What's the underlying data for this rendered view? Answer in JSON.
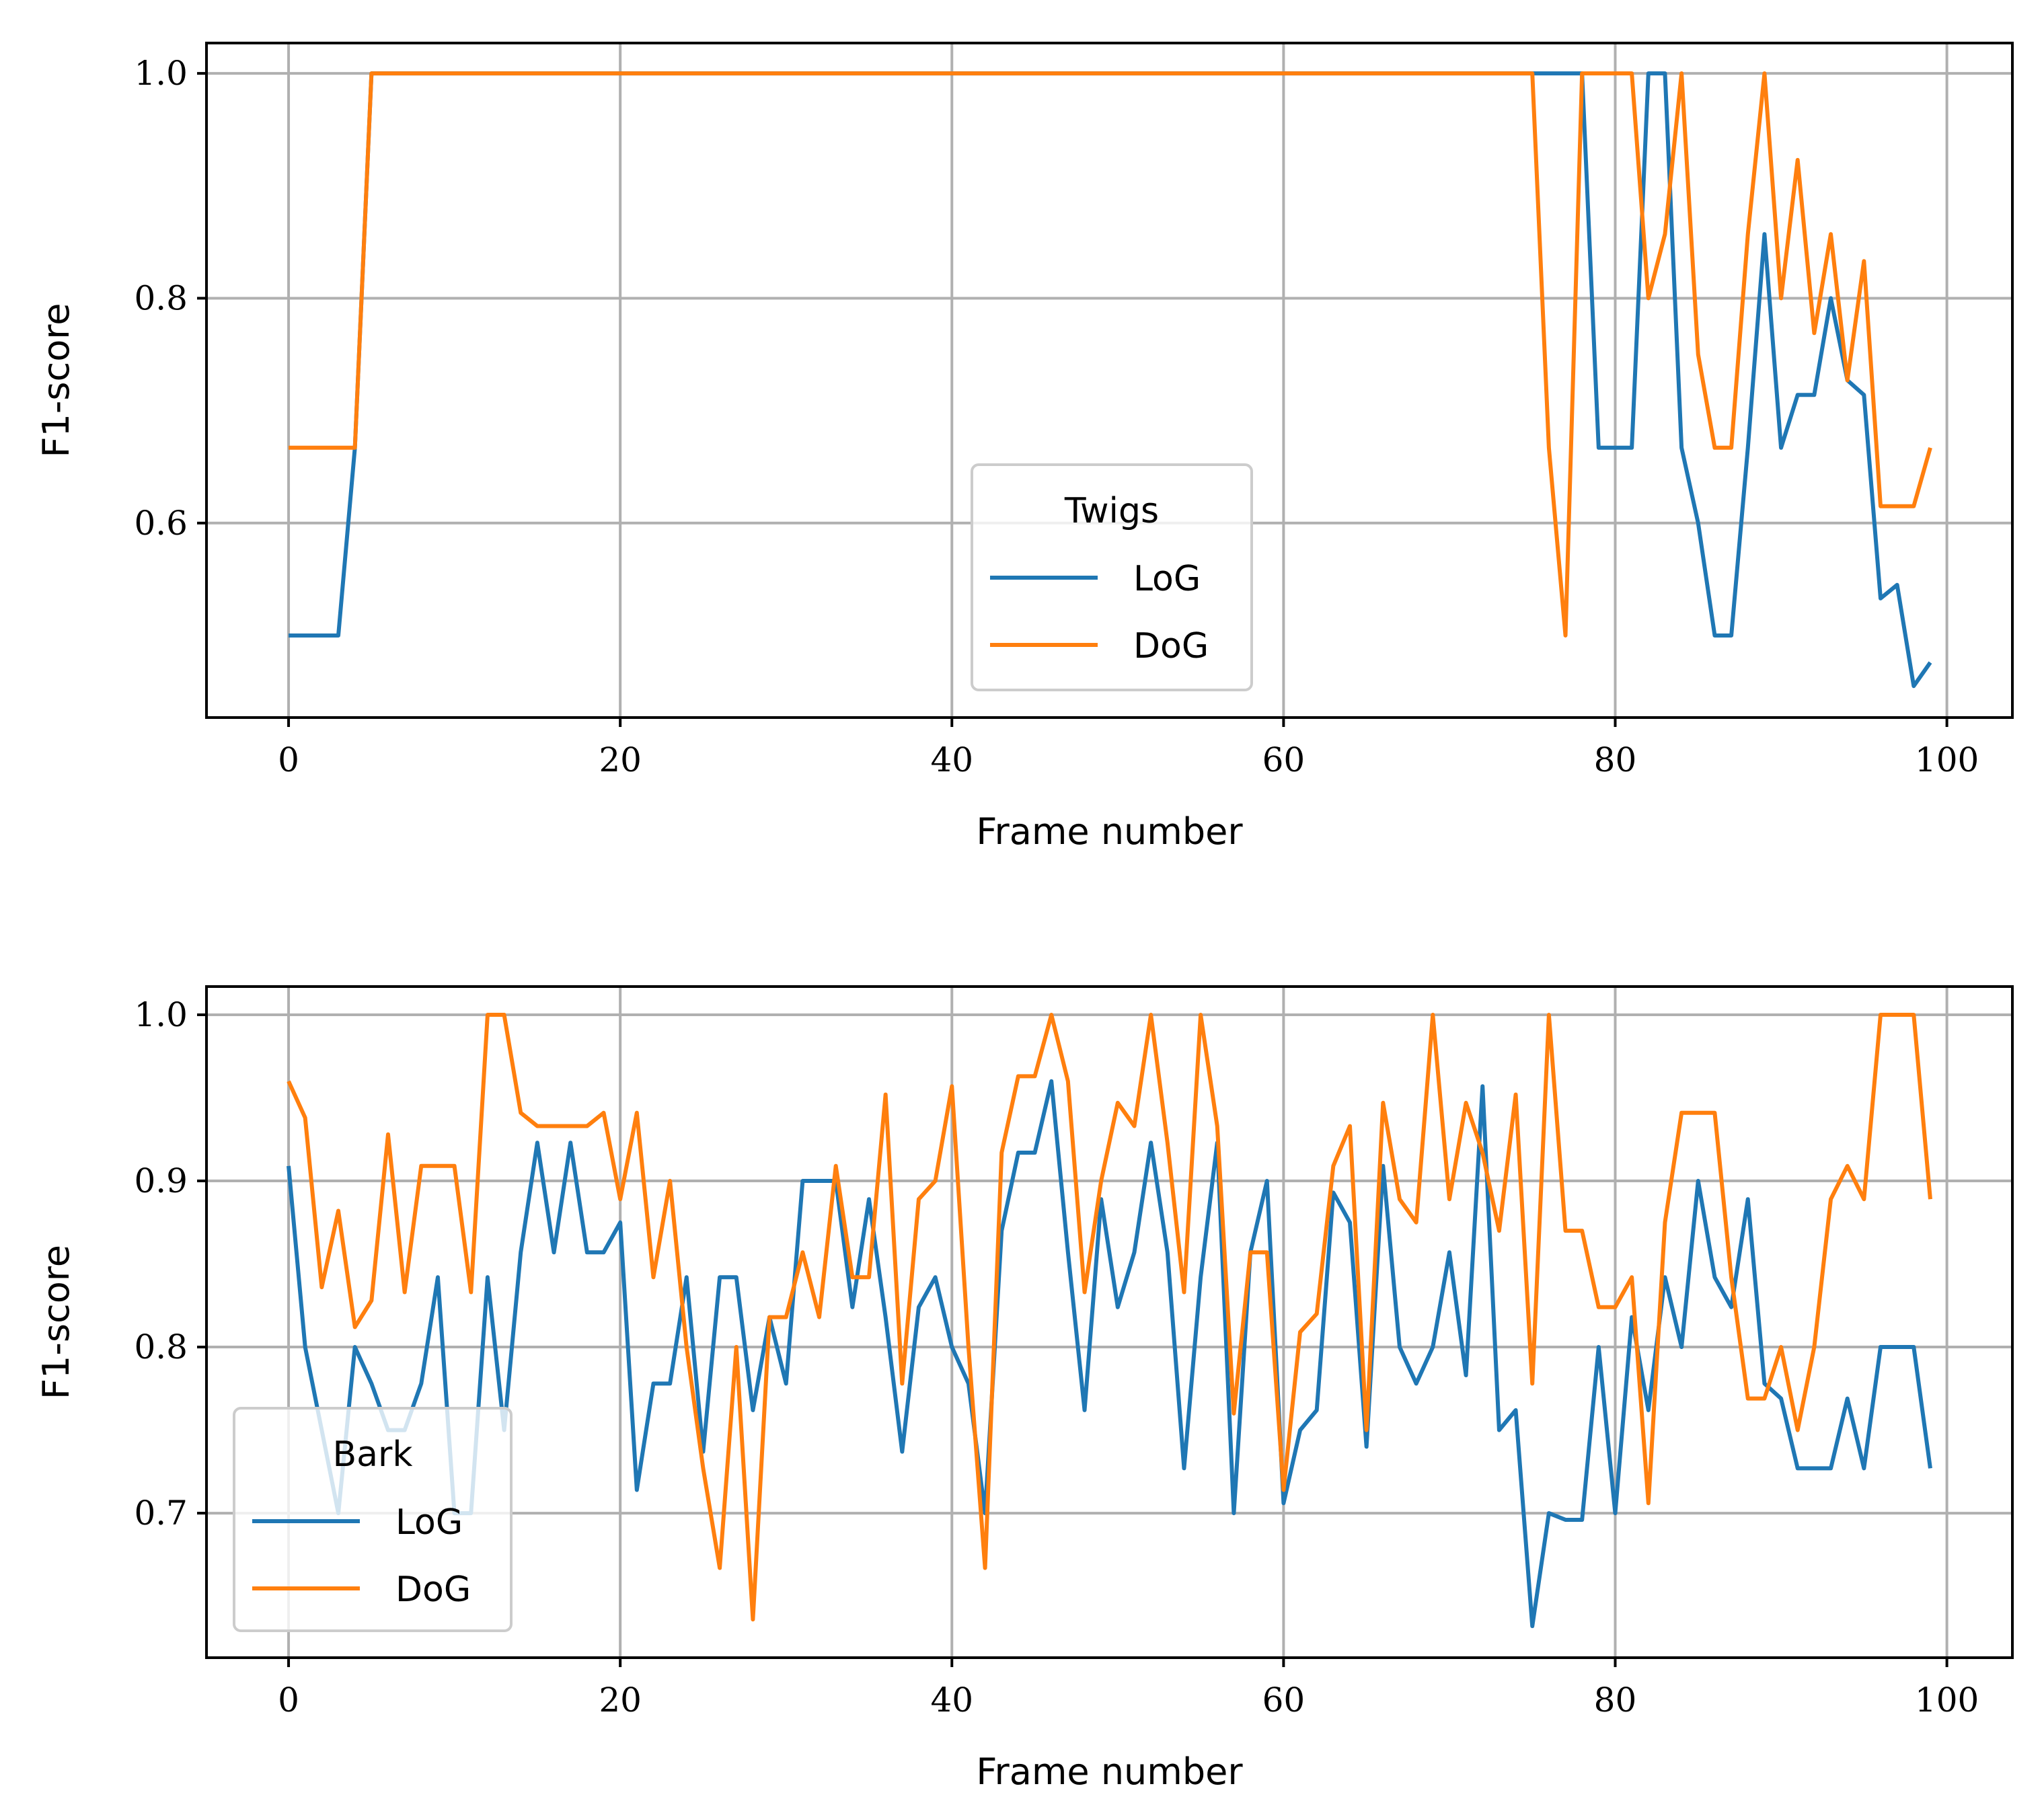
{
  "chart_data": [
    {
      "type": "line",
      "xlabel": "Frame number",
      "ylabel": "F1-score",
      "xlim": [
        -4.95,
        103.95
      ],
      "ylim": [
        0.427,
        1.027
      ],
      "xticks": [
        0,
        20,
        40,
        60,
        80,
        100
      ],
      "xtick_labels": [
        "0",
        "20",
        "40",
        "60",
        "80",
        "100"
      ],
      "yticks": [
        0.6,
        0.8,
        1.0
      ],
      "ytick_labels": [
        "0.6",
        "0.8",
        "1.0"
      ],
      "grid": true,
      "legend": {
        "title": "Twigs",
        "placement": "lower-center"
      },
      "series": [
        {
          "name": "LoG",
          "color": "#1f77b4",
          "values": [
            0.5,
            0.5,
            0.5,
            0.5,
            0.667,
            1,
            1,
            1,
            1,
            1,
            1,
            1,
            1,
            1,
            1,
            1,
            1,
            1,
            1,
            1,
            1,
            1,
            1,
            1,
            1,
            1,
            1,
            1,
            1,
            1,
            1,
            1,
            1,
            1,
            1,
            1,
            1,
            1,
            1,
            1,
            1,
            1,
            1,
            1,
            1,
            1,
            1,
            1,
            1,
            1,
            1,
            1,
            1,
            1,
            1,
            1,
            1,
            1,
            1,
            1,
            1,
            1,
            1,
            1,
            1,
            1,
            1,
            1,
            1,
            1,
            1,
            1,
            1,
            1,
            1,
            1,
            1,
            1,
            1,
            0.667,
            0.667,
            0.667,
            1,
            1,
            0.667,
            0.6,
            0.5,
            0.5,
            0.667,
            0.857,
            0.667,
            0.714,
            0.714,
            0.8,
            0.727,
            0.714,
            0.533,
            0.545,
            0.455,
            0.476
          ]
        },
        {
          "name": "DoG",
          "color": "#ff7f0e",
          "values": [
            0.667,
            0.667,
            0.667,
            0.667,
            0.667,
            1,
            1,
            1,
            1,
            1,
            1,
            1,
            1,
            1,
            1,
            1,
            1,
            1,
            1,
            1,
            1,
            1,
            1,
            1,
            1,
            1,
            1,
            1,
            1,
            1,
            1,
            1,
            1,
            1,
            1,
            1,
            1,
            1,
            1,
            1,
            1,
            1,
            1,
            1,
            1,
            1,
            1,
            1,
            1,
            1,
            1,
            1,
            1,
            1,
            1,
            1,
            1,
            1,
            1,
            1,
            1,
            1,
            1,
            1,
            1,
            1,
            1,
            1,
            1,
            1,
            1,
            1,
            1,
            1,
            1,
            1,
            0.667,
            0.5,
            1,
            1,
            1,
            1,
            0.8,
            0.857,
            1,
            0.75,
            0.667,
            0.667,
            0.857,
            1,
            0.8,
            0.923,
            0.769,
            0.857,
            0.727,
            0.833,
            0.615,
            0.615,
            0.615,
            0.667
          ]
        }
      ]
    },
    {
      "type": "line",
      "xlabel": "Frame number",
      "ylabel": "F1-score",
      "xlim": [
        -4.95,
        103.95
      ],
      "ylim": [
        0.613,
        1.017
      ],
      "xticks": [
        0,
        20,
        40,
        60,
        80,
        100
      ],
      "xtick_labels": [
        "0",
        "20",
        "40",
        "60",
        "80",
        "100"
      ],
      "yticks": [
        0.7,
        0.8,
        0.9,
        1.0
      ],
      "ytick_labels": [
        "0.7",
        "0.8",
        "0.9",
        "1.0"
      ],
      "grid": true,
      "legend": {
        "title": "Bark",
        "placement": "lower-left"
      },
      "series": [
        {
          "name": "LoG",
          "color": "#1f77b4",
          "values": [
            0.909,
            0.8,
            0.75,
            0.7,
            0.8,
            0.778,
            0.75,
            0.75,
            0.778,
            0.842,
            0.7,
            0.7,
            0.842,
            0.75,
            0.857,
            0.923,
            0.857,
            0.923,
            0.857,
            0.857,
            0.875,
            0.714,
            0.778,
            0.778,
            0.842,
            0.737,
            0.842,
            0.842,
            0.762,
            0.818,
            0.778,
            0.9,
            0.9,
            0.9,
            0.824,
            0.889,
            0.818,
            0.737,
            0.824,
            0.842,
            0.8,
            0.778,
            0.7,
            0.87,
            0.917,
            0.917,
            0.96,
            0.857,
            0.762,
            0.889,
            0.824,
            0.857,
            0.923,
            0.857,
            0.727,
            0.842,
            0.923,
            0.7,
            0.857,
            0.9,
            0.706,
            0.75,
            0.762,
            0.893,
            0.875,
            0.74,
            0.909,
            0.8,
            0.778,
            0.8,
            0.857,
            0.783,
            0.957,
            0.75,
            0.762,
            0.632,
            0.7,
            0.696,
            0.696,
            0.8,
            0.7,
            0.818,
            0.762,
            0.842,
            0.8,
            0.9,
            0.842,
            0.824,
            0.889,
            0.778,
            0.769,
            0.727,
            0.727,
            0.727,
            0.769,
            0.727,
            0.8,
            0.8,
            0.8,
            0.727
          ]
        },
        {
          "name": "DoG",
          "color": "#ff7f0e",
          "values": [
            0.96,
            0.938,
            0.836,
            0.882,
            0.812,
            0.828,
            0.928,
            0.833,
            0.909,
            0.909,
            0.909,
            0.833,
            1,
            1,
            0.941,
            0.933,
            0.933,
            0.933,
            0.933,
            0.941,
            0.889,
            0.941,
            0.842,
            0.9,
            0.8,
            0.727,
            0.667,
            0.8,
            0.636,
            0.818,
            0.818,
            0.857,
            0.818,
            0.909,
            0.842,
            0.842,
            0.952,
            0.778,
            0.889,
            0.9,
            0.957,
            0.8,
            0.667,
            0.917,
            0.963,
            0.963,
            1,
            0.96,
            0.833,
            0.9,
            0.947,
            0.933,
            1,
            0.923,
            0.833,
            1,
            0.933,
            0.76,
            0.857,
            0.857,
            0.714,
            0.809,
            0.82,
            0.909,
            0.933,
            0.75,
            0.947,
            0.889,
            0.875,
            1,
            0.889,
            0.947,
            0.917,
            0.87,
            0.952,
            0.778,
            1,
            0.87,
            0.87,
            0.824,
            0.824,
            0.842,
            0.706,
            0.875,
            0.941,
            0.941,
            0.941,
            0.842,
            0.769,
            0.769,
            0.8,
            0.75,
            0.8,
            0.889,
            0.909,
            0.889,
            1,
            1,
            1,
            0.889
          ]
        }
      ]
    }
  ]
}
